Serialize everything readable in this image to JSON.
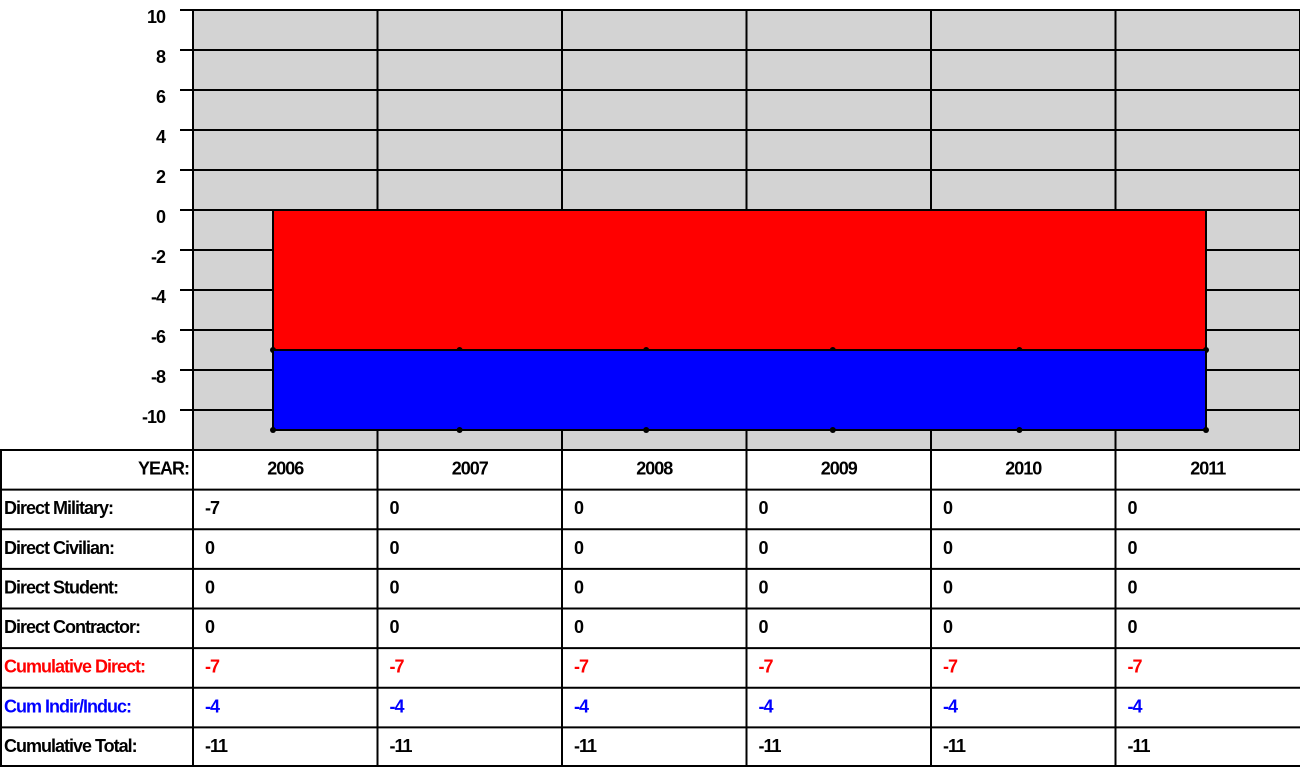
{
  "chart_data": {
    "type": "area",
    "stacked": true,
    "categories": [
      "2006",
      "2007",
      "2008",
      "2009",
      "2010",
      "2011"
    ],
    "category_header": "YEAR:",
    "series": [
      {
        "name": "Cumulative Direct:",
        "color": "#ff0000",
        "values": [
          -7,
          -7,
          -7,
          -7,
          -7,
          -7
        ]
      },
      {
        "name": "Cum Indir/Induc:",
        "color": "#0000ff",
        "values": [
          -4,
          -4,
          -4,
          -4,
          -4,
          -4
        ]
      }
    ],
    "table_rows": [
      {
        "name": "Direct Military:",
        "values": [
          -7,
          0,
          0,
          0,
          0,
          0
        ]
      },
      {
        "name": "Direct Civilian:",
        "values": [
          0,
          0,
          0,
          0,
          0,
          0
        ]
      },
      {
        "name": "Direct Student:",
        "values": [
          0,
          0,
          0,
          0,
          0,
          0
        ]
      },
      {
        "name": "Direct Contractor:",
        "values": [
          0,
          0,
          0,
          0,
          0,
          0
        ]
      }
    ],
    "total_row": {
      "name": "Cumulative Total:",
      "values": [
        -11,
        -11,
        -11,
        -11,
        -11,
        -11
      ]
    },
    "ylim": [
      -12,
      10
    ],
    "yticks": [
      10,
      8,
      6,
      4,
      2,
      0,
      -2,
      -4,
      -6,
      -8,
      -10
    ],
    "grid": true,
    "plot_background": "#d3d3d3"
  }
}
